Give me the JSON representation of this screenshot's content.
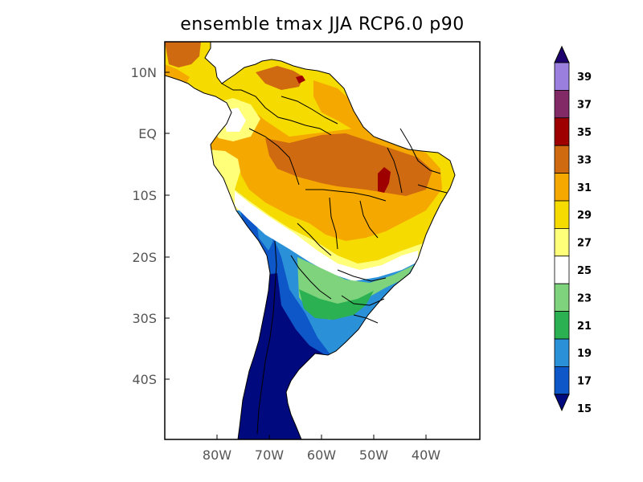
{
  "title": "ensemble tmax JJA RCP6.0 p90",
  "map": {
    "y_ticks": [
      "10N",
      "EQ",
      "10S",
      "20S",
      "30S",
      "40S"
    ],
    "x_ticks": [
      "80W",
      "70W",
      "60W",
      "50W",
      "40W"
    ]
  },
  "colorbar": {
    "levels": [
      "39",
      "37",
      "35",
      "33",
      "31",
      "29",
      "27",
      "25",
      "23",
      "21",
      "19",
      "17",
      "15"
    ],
    "colors": [
      "#1d006e",
      "#9a7fdf",
      "#812a65",
      "#9e0000",
      "#cf6a10",
      "#f5a900",
      "#f6db00",
      "#ffff7a",
      "#ffffff",
      "#7fd37d",
      "#2bb052",
      "#2a91d8",
      "#0e57c8",
      "#000a7e"
    ],
    "under_color": "#000a7e",
    "over_color": "#1d006e"
  }
}
